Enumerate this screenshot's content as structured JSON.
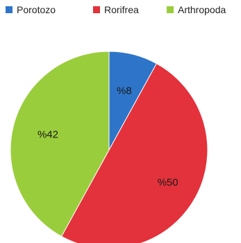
{
  "chart_data": {
    "type": "pie",
    "labels": [
      "Porotozo",
      "Rorifrea",
      "Arthropoda"
    ],
    "values": [
      8,
      50,
      42
    ],
    "data_labels": [
      "%8",
      "%50",
      "%42"
    ],
    "colors": [
      "#2e75c9",
      "#e3323b",
      "#9acd3c"
    ],
    "legend_position": "top",
    "start_angle": "12 o'clock",
    "direction": "clockwise"
  }
}
